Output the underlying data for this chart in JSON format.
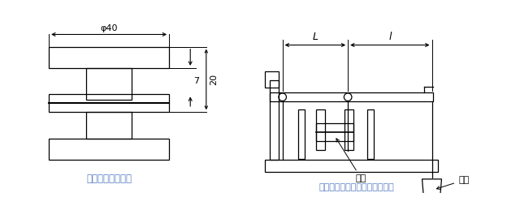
{
  "bg_color": "#ffffff",
  "lc": "#000000",
  "label_color": "#5b7fc7",
  "fig_width": 6.4,
  "fig_height": 2.59,
  "left_label": "拉伸强度测定试件",
  "right_label": "拉伸强度测定试件粘接加压装置",
  "dim_phi40": "φ40",
  "dim_7": "7",
  "dim_20": "20",
  "dim_L": "L",
  "dim_l": "l",
  "annot_peizong": "配重",
  "annot_shijian": "试件"
}
